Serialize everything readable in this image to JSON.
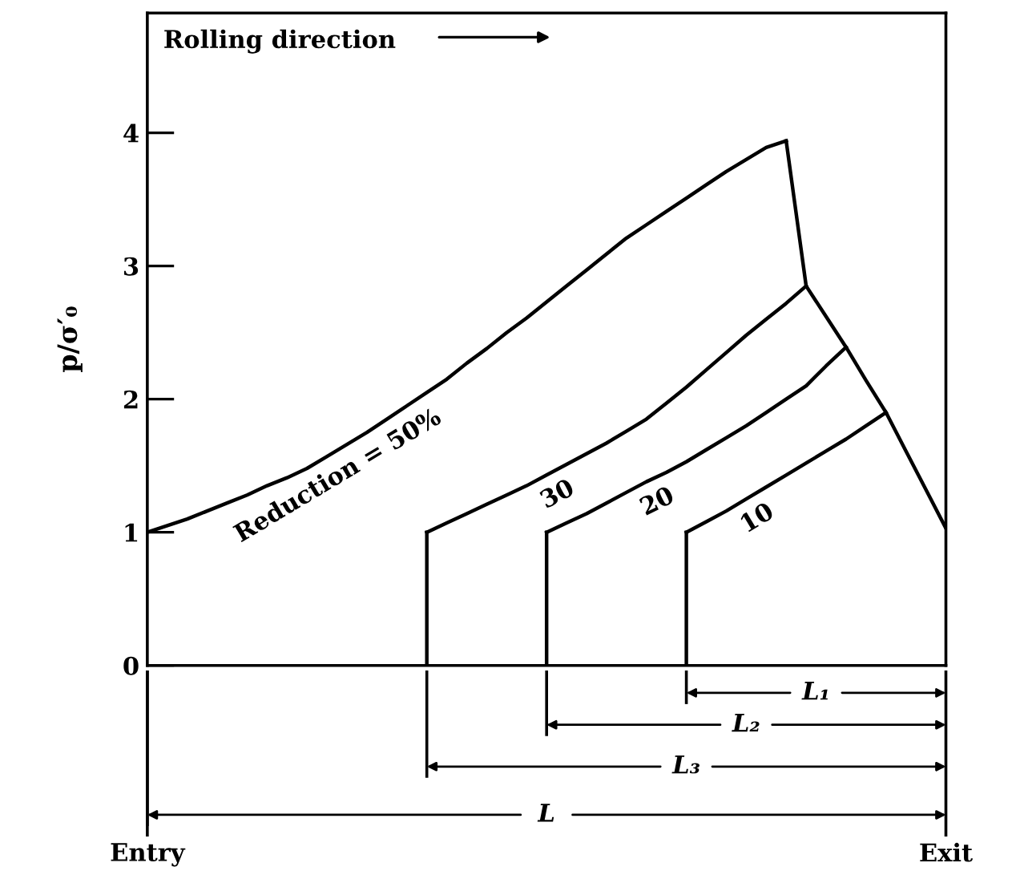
{
  "chart_data": {
    "type": "line",
    "ylabel": "p/σ′₀",
    "categories": [
      null,
      null,
      null,
      null,
      null,
      null,
      null,
      null,
      null,
      null,
      null,
      null,
      null,
      null,
      null,
      null,
      null,
      null,
      null,
      null,
      null,
      null,
      null,
      null,
      null,
      null,
      null,
      null,
      null,
      null,
      null,
      null,
      null,
      null,
      null,
      null,
      null,
      null,
      null,
      null,
      null
    ],
    "ylim": [
      0,
      4.9
    ],
    "yticks": [
      0,
      1,
      2,
      3,
      4
    ],
    "tick_labels": "y",
    "grid": false,
    "legend": false,
    "marker": "none",
    "line_style": "solid",
    "series": [
      {
        "name": "Reduction = 50%",
        "color": "#000000",
        "values": [
          1.0,
          1.05,
          1.1,
          1.16,
          1.22,
          1.28,
          1.35,
          1.41,
          1.48,
          1.57,
          1.66,
          1.75,
          1.85,
          1.95,
          2.05,
          2.15,
          2.27,
          2.38,
          2.5,
          2.61,
          2.73,
          2.85,
          2.97,
          3.09,
          3.21,
          3.31,
          3.41,
          3.51,
          3.61,
          3.71,
          3.8,
          3.89,
          3.94,
          null,
          null,
          null,
          null,
          null,
          null,
          null,
          null
        ]
      },
      {
        "name": "30",
        "color": "#000000",
        "values": [
          null,
          null,
          null,
          null,
          null,
          null,
          null,
          null,
          null,
          null,
          null,
          null,
          null,
          null,
          1.0,
          1.07,
          1.14,
          1.21,
          1.28,
          1.35,
          1.43,
          1.51,
          1.59,
          1.67,
          1.76,
          1.85,
          1.97,
          2.09,
          2.22,
          2.35,
          2.48,
          2.6,
          2.72,
          2.85,
          null,
          null,
          null,
          null,
          null,
          null,
          null
        ]
      },
      {
        "name": "20",
        "color": "#000000",
        "values": [
          null,
          null,
          null,
          null,
          null,
          null,
          null,
          null,
          null,
          null,
          null,
          null,
          null,
          null,
          null,
          null,
          null,
          null,
          null,
          null,
          1.0,
          1.07,
          1.14,
          1.22,
          1.3,
          1.38,
          1.45,
          1.53,
          1.62,
          1.71,
          1.8,
          1.9,
          2.0,
          2.1,
          2.25,
          2.39,
          null,
          null,
          null,
          null,
          null
        ]
      },
      {
        "name": "10",
        "color": "#000000",
        "values": [
          null,
          null,
          null,
          null,
          null,
          null,
          null,
          null,
          null,
          null,
          null,
          null,
          null,
          null,
          null,
          null,
          null,
          null,
          null,
          null,
          null,
          null,
          null,
          null,
          null,
          null,
          null,
          1.0,
          1.08,
          1.16,
          1.25,
          1.34,
          1.43,
          1.52,
          1.61,
          1.7,
          1.8,
          1.9,
          null,
          null,
          null
        ]
      },
      {
        "color": "#000000",
        "values": [
          null,
          null,
          null,
          null,
          null,
          null,
          null,
          null,
          null,
          null,
          null,
          null,
          null,
          null,
          null,
          null,
          null,
          null,
          null,
          null,
          null,
          null,
          null,
          null,
          null,
          null,
          null,
          null,
          null,
          null,
          null,
          null,
          3.94,
          2.85,
          2.62,
          2.39,
          2.14,
          1.9,
          1.61,
          1.32,
          1.03
        ]
      }
    ],
    "annotations": [
      "Rolling direction",
      "L₁",
      "L₂",
      "L₃",
      "L",
      "Entry",
      "Exit"
    ]
  }
}
